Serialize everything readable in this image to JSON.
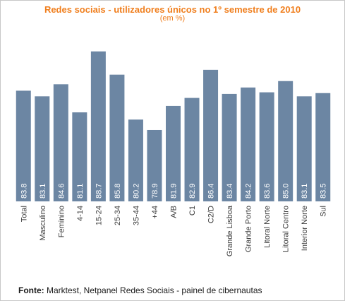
{
  "colors": {
    "title": "#f07f1e",
    "bar": "#6c86a3",
    "bar_label": "#ffffff",
    "tick_label": "#3c3c3c"
  },
  "chart_data": {
    "type": "bar",
    "title": "Redes sociais - utilizadores únicos no 1º semestre de 2010",
    "subtitle": "(em %)",
    "categories": [
      "Total",
      "Masculino",
      "Feminino",
      "4-14",
      "15-24",
      "25-34",
      "35-44",
      "+44",
      "A/B",
      "C1",
      "C2/D",
      "Grande Lisboa",
      "Grande Porto",
      "Litoral Norte",
      "Litoral Centro",
      "Interior Norte",
      "Sul"
    ],
    "values": [
      83.8,
      83.1,
      84.6,
      81.1,
      88.7,
      85.8,
      80.2,
      78.9,
      81.9,
      82.9,
      86.4,
      83.4,
      84.2,
      83.6,
      85.0,
      83.1,
      83.5
    ],
    "value_labels": [
      "83.8",
      "83.1",
      "84.6",
      "81.1",
      "88.7",
      "85.8",
      "80.2",
      "78.9",
      "81.9",
      "82.9",
      "86.4",
      "83.4",
      "84.2",
      "83.6",
      "85.0",
      "83.1",
      "83.5"
    ],
    "ylim": [
      70,
      90
    ],
    "grid": false,
    "legend": "none",
    "data_labels": "inside-bottom-rotated"
  },
  "source": {
    "label": "Fonte:",
    "text": " Marktest, Netpanel Redes Sociais - painel de cibernautas"
  }
}
